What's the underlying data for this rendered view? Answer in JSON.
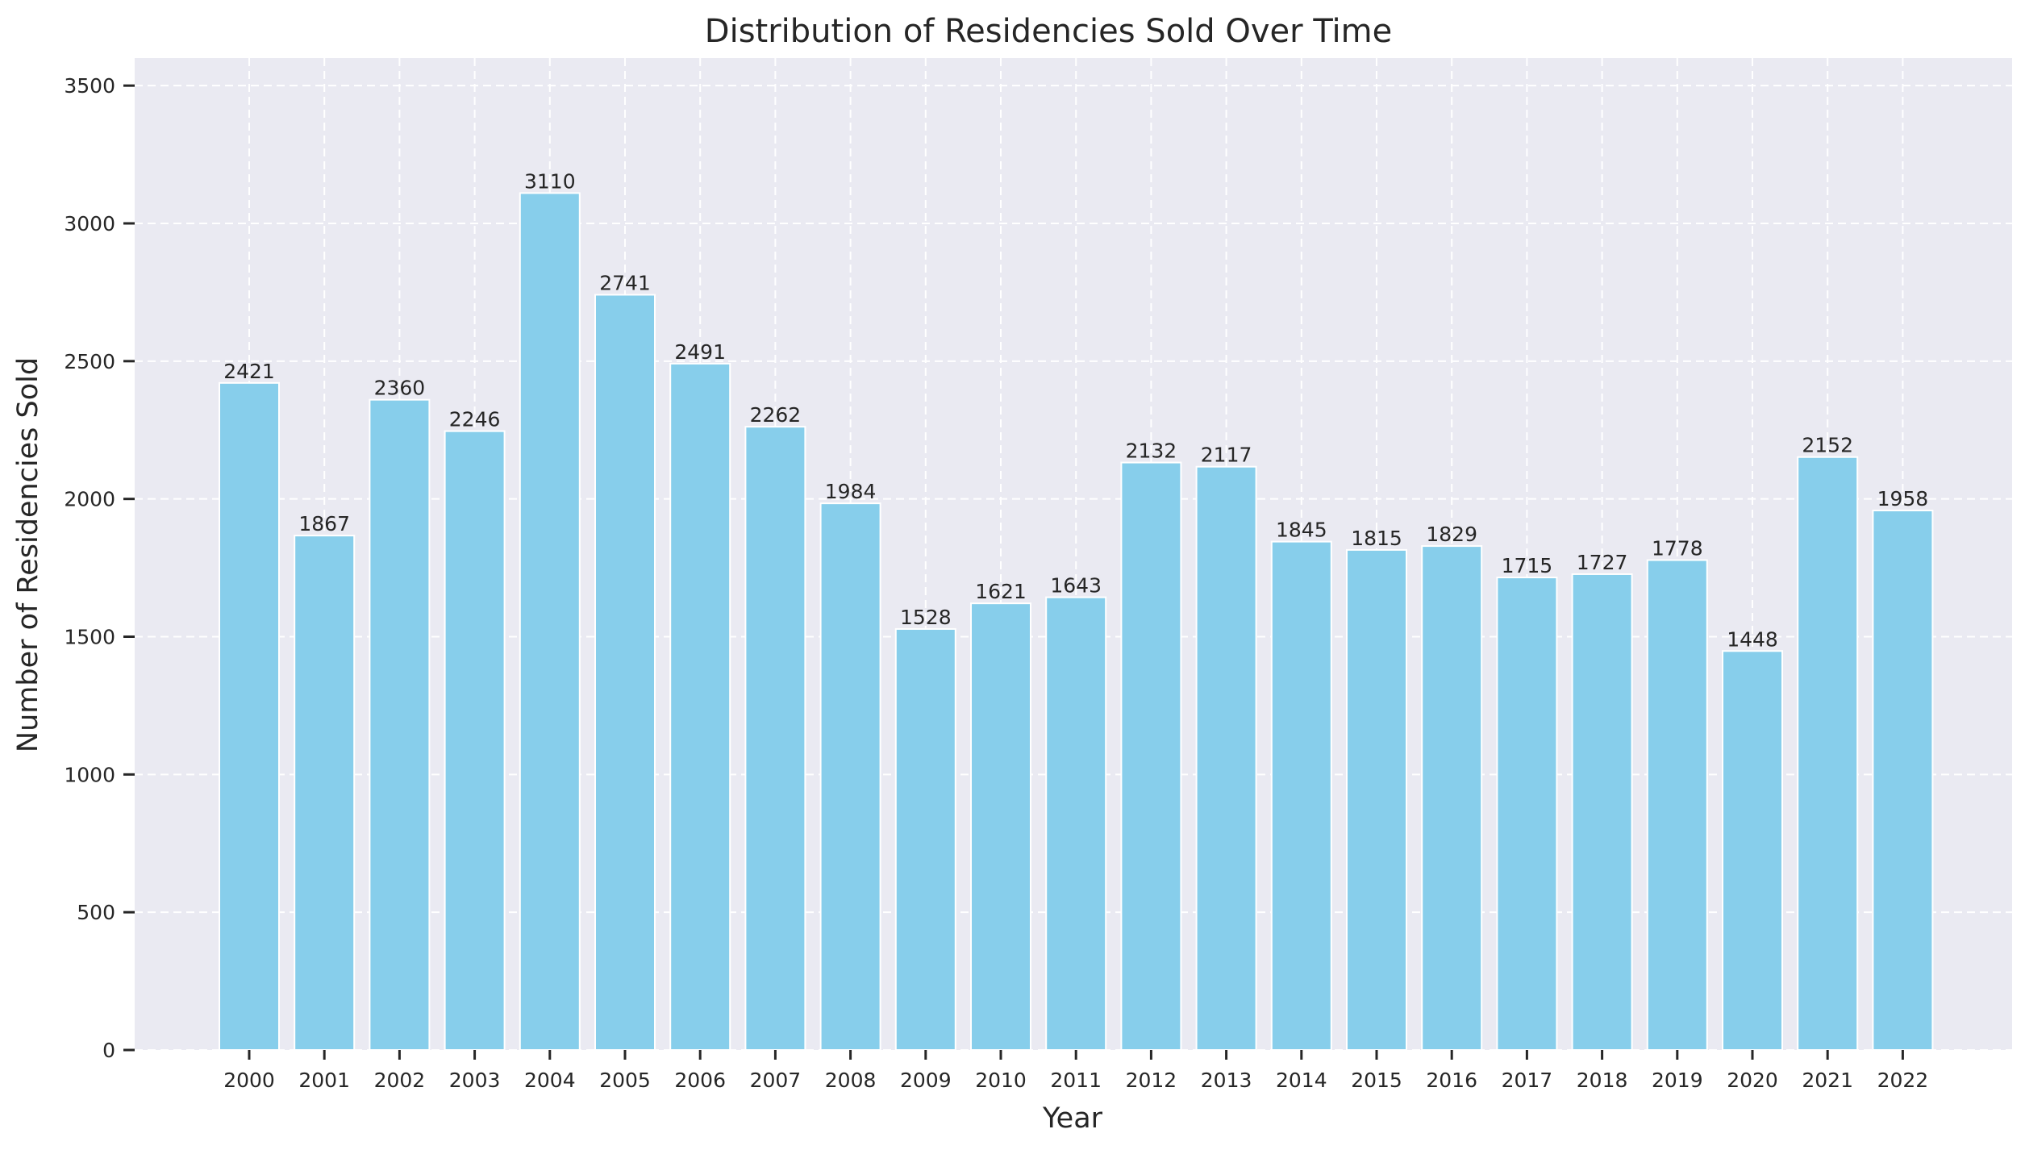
{
  "chart_data": {
    "type": "bar",
    "title": "Distribution of Residencies Sold Over Time",
    "xlabel": "Year",
    "ylabel": "Number of Residencies Sold",
    "categories": [
      "2000",
      "2001",
      "2002",
      "2003",
      "2004",
      "2005",
      "2006",
      "2007",
      "2008",
      "2009",
      "2010",
      "2011",
      "2012",
      "2013",
      "2014",
      "2015",
      "2016",
      "2017",
      "2018",
      "2019",
      "2020",
      "2021",
      "2022"
    ],
    "values": [
      2421,
      1867,
      2360,
      2246,
      3110,
      2741,
      2491,
      2262,
      1984,
      1528,
      1621,
      1643,
      2132,
      2117,
      1845,
      1815,
      1829,
      1715,
      1727,
      1778,
      1448,
      2152,
      1958
    ],
    "ylim": [
      0,
      3600
    ],
    "yticks": [
      0,
      500,
      1000,
      1500,
      2000,
      2500,
      3000,
      3500
    ],
    "grid": true,
    "bar_color": "#87ceeb",
    "background_color": "#eaeaf2"
  }
}
